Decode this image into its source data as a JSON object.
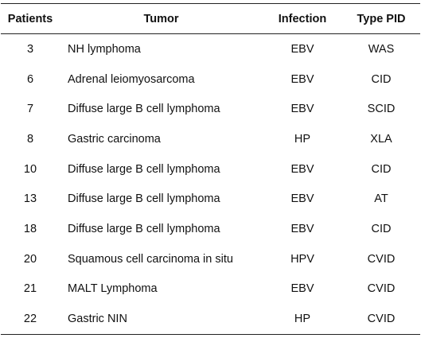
{
  "table": {
    "headers": {
      "patients": "Patients",
      "tumor": "Tumor",
      "infection": "Infection",
      "type_pid": "Type PID"
    },
    "rows": [
      {
        "patients": "3",
        "tumor": "NH lymphoma",
        "infection": "EBV",
        "type_pid": "WAS"
      },
      {
        "patients": "6",
        "tumor": "Adrenal leiomyosarcoma",
        "infection": "EBV",
        "type_pid": "CID"
      },
      {
        "patients": "7",
        "tumor": "Diffuse large B cell lymphoma",
        "infection": "EBV",
        "type_pid": "SCID"
      },
      {
        "patients": "8",
        "tumor": "Gastric carcinoma",
        "infection": "HP",
        "type_pid": "XLA"
      },
      {
        "patients": "10",
        "tumor": "Diffuse large B cell lymphoma",
        "infection": "EBV",
        "type_pid": "CID"
      },
      {
        "patients": "13",
        "tumor": "Diffuse large B cell lymphoma",
        "infection": "EBV",
        "type_pid": "AT"
      },
      {
        "patients": "18",
        "tumor": "Diffuse large B cell lymphoma",
        "infection": "EBV",
        "type_pid": "CID"
      },
      {
        "patients": "20",
        "tumor": "Squamous cell carcinoma in situ",
        "infection": "HPV",
        "type_pid": "CVID"
      },
      {
        "patients": "21",
        "tumor": "MALT Lymphoma",
        "infection": "EBV",
        "type_pid": "CVID"
      },
      {
        "patients": "22",
        "tumor": "Gastric NIN",
        "infection": "HP",
        "type_pid": "CVID"
      }
    ]
  }
}
